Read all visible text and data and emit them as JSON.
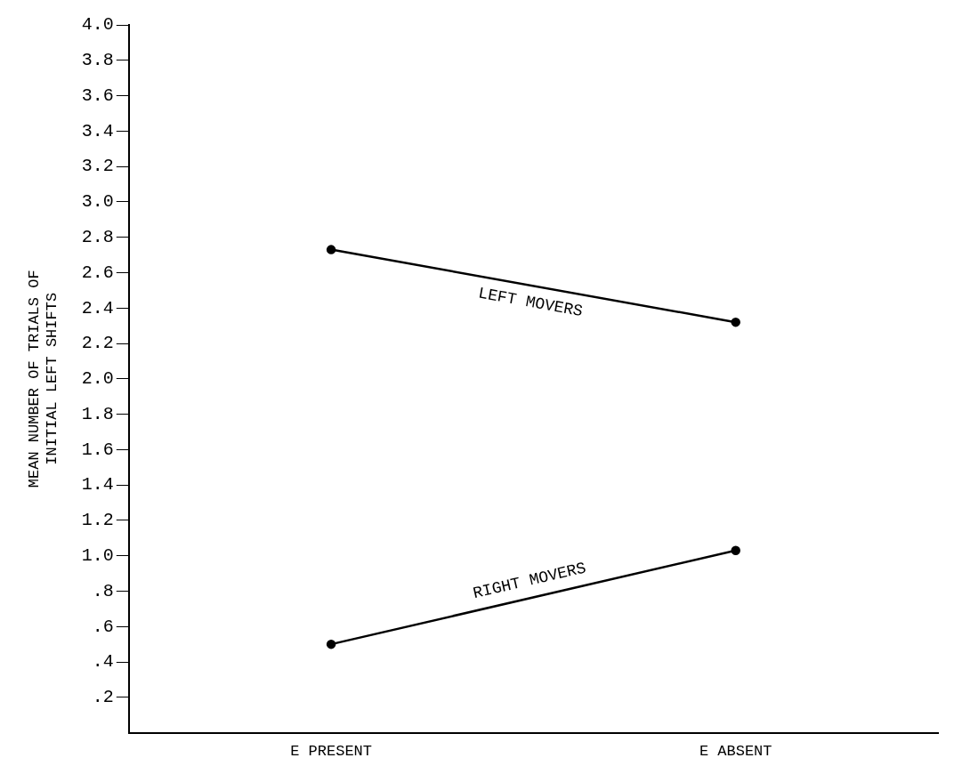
{
  "chart_data": {
    "type": "line",
    "ylabel": "MEAN NUMBER OF TRIALS OF\nINITIAL LEFT SHIFTS",
    "categories": [
      "E PRESENT",
      "E ABSENT"
    ],
    "series": [
      {
        "name": "LEFT MOVERS",
        "color": "#000000",
        "values": [
          2.73,
          2.32
        ]
      },
      {
        "name": "RIGHT MOVERS",
        "color": "#000000",
        "values": [
          0.5,
          1.03
        ]
      }
    ],
    "ylim": [
      0,
      4
    ],
    "yticks": [
      {
        "value": 0.2,
        "label": ".2"
      },
      {
        "value": 0.4,
        "label": ".4"
      },
      {
        "value": 0.6,
        "label": ".6"
      },
      {
        "value": 0.8,
        "label": ".8"
      },
      {
        "value": 1,
        "label": "1.0"
      },
      {
        "value": 1.2,
        "label": "1.2"
      },
      {
        "value": 1.4,
        "label": "1.4"
      },
      {
        "value": 1.6,
        "label": "1.6"
      },
      {
        "value": 1.8,
        "label": "1.8"
      },
      {
        "value": 2,
        "label": "2.0"
      },
      {
        "value": 2.2,
        "label": "2.2"
      },
      {
        "value": 2.4,
        "label": "2.4"
      },
      {
        "value": 2.6,
        "label": "2.6"
      },
      {
        "value": 2.8,
        "label": "2.8"
      },
      {
        "value": 3,
        "label": "3.0"
      },
      {
        "value": 3.2,
        "label": "3.2"
      },
      {
        "value": 3.4,
        "label": "3.4"
      },
      {
        "value": 3.6,
        "label": "3.6"
      },
      {
        "value": 3.8,
        "label": "3.8"
      },
      {
        "value": 4,
        "label": "4.0"
      }
    ],
    "grid": false,
    "legend": false,
    "marker": "circle",
    "line_style": "solid"
  }
}
